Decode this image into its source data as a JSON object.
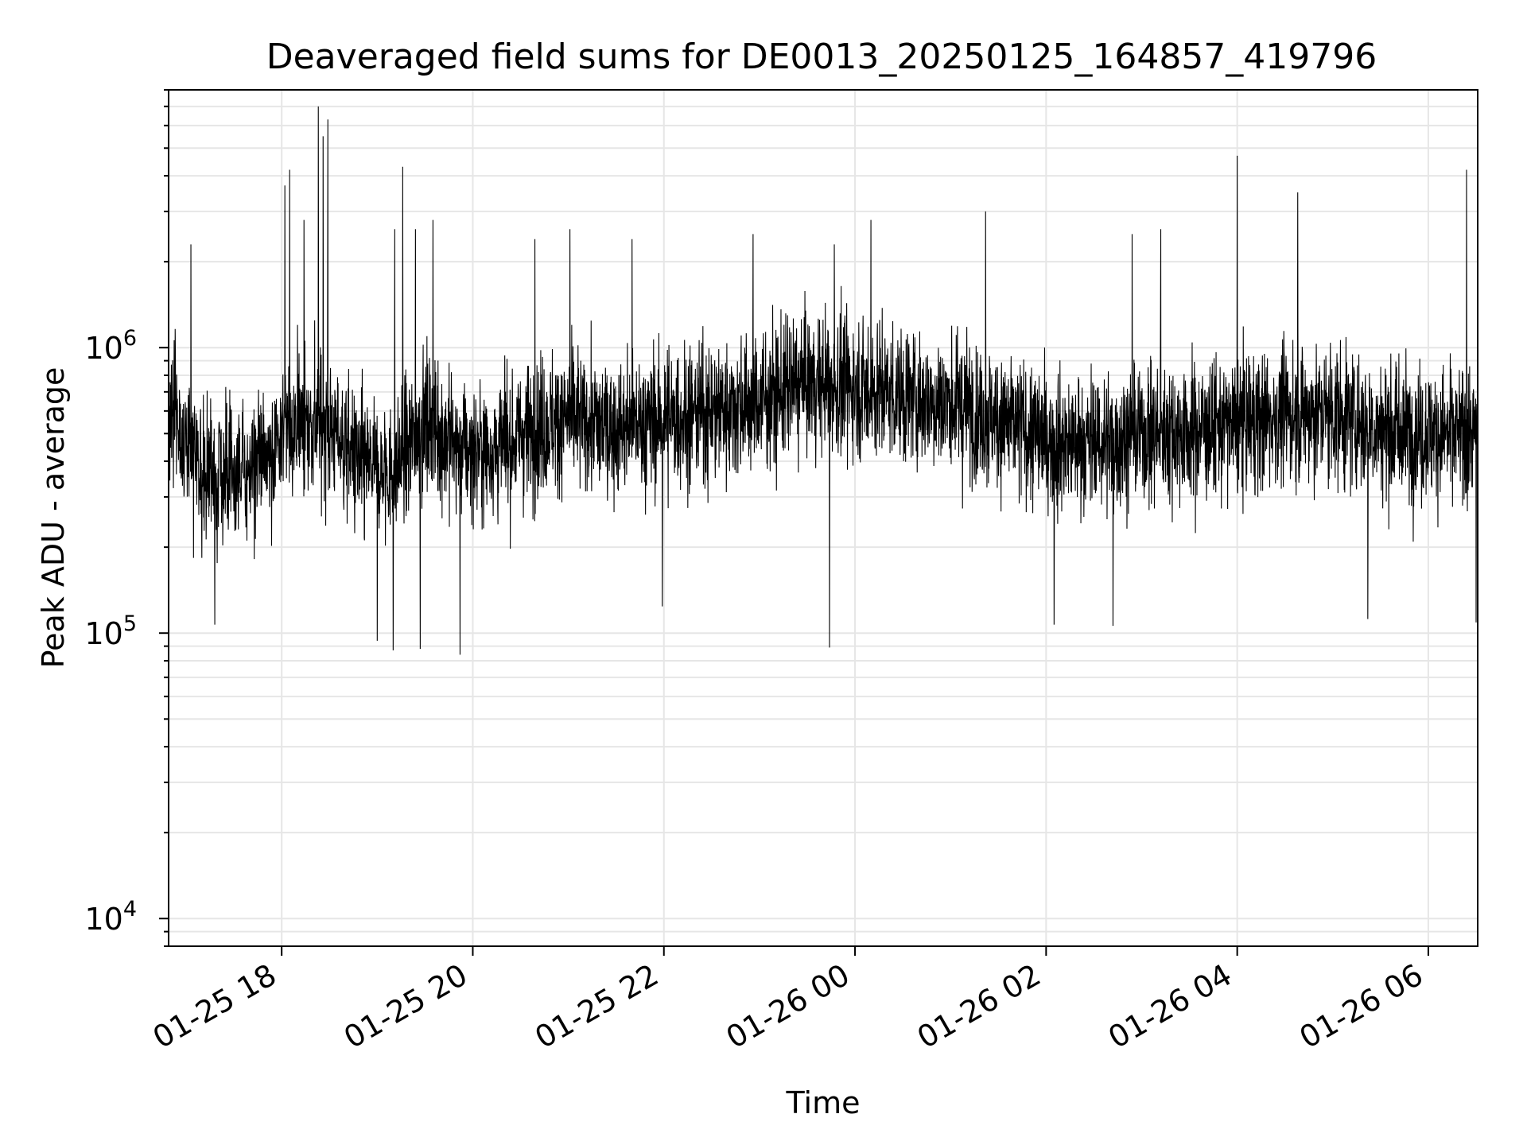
{
  "chart_data": {
    "type": "line",
    "title": "Deaveraged field sums for DE0013_20250125_164857_419796",
    "xlabel": "Time",
    "ylabel": "Peak ADU - average",
    "y_scale": "log",
    "ylim": [
      8000,
      8000000
    ],
    "xlim": [
      "2025-01-25 16:49",
      "2025-01-26 06:31"
    ],
    "grid": true,
    "legend": "none",
    "x_ticks": [
      {
        "date": "2025-01-25 18:00",
        "label": "01-25 18"
      },
      {
        "date": "2025-01-25 20:00",
        "label": "01-25 20"
      },
      {
        "date": "2025-01-25 22:00",
        "label": "01-25 22"
      },
      {
        "date": "2025-01-26 00:00",
        "label": "01-26 00"
      },
      {
        "date": "2025-01-26 02:00",
        "label": "01-26 02"
      },
      {
        "date": "2025-01-26 04:00",
        "label": "01-26 04"
      },
      {
        "date": "2025-01-26 06:00",
        "label": "01-26 06"
      }
    ],
    "y_ticks": [
      {
        "value": 10000,
        "base": "10",
        "exp": "4"
      },
      {
        "value": 100000,
        "base": "10",
        "exp": "5"
      },
      {
        "value": 1000000,
        "base": "10",
        "exp": "6"
      }
    ],
    "colors": {
      "line": "#000000",
      "grid": "#e6e6e6",
      "axes": "#000000"
    },
    "series": [
      {
        "baseline_points": [
          [
            "2025-01-25 16:49",
            600000
          ],
          [
            "2025-01-25 17:10",
            380000
          ],
          [
            "2025-01-25 17:30",
            340000
          ],
          [
            "2025-01-25 17:50",
            420000
          ],
          [
            "2025-01-25 18:10",
            560000
          ],
          [
            "2025-01-25 18:30",
            530000
          ],
          [
            "2025-01-25 18:50",
            380000
          ],
          [
            "2025-01-25 19:10",
            360000
          ],
          [
            "2025-01-25 19:30",
            560000
          ],
          [
            "2025-01-25 19:50",
            450000
          ],
          [
            "2025-01-25 20:10",
            430000
          ],
          [
            "2025-01-25 20:40",
            520000
          ],
          [
            "2025-01-25 21:00",
            560000
          ],
          [
            "2025-01-25 21:30",
            520000
          ],
          [
            "2025-01-25 22:00",
            560000
          ],
          [
            "2025-01-25 22:30",
            600000
          ],
          [
            "2025-01-25 23:00",
            650000
          ],
          [
            "2025-01-25 23:30",
            760000
          ],
          [
            "2025-01-26 00:00",
            730000
          ],
          [
            "2025-01-26 00:30",
            680000
          ],
          [
            "2025-01-26 01:00",
            640000
          ],
          [
            "2025-01-26 01:30",
            560000
          ],
          [
            "2025-01-26 02:00",
            470000
          ],
          [
            "2025-01-26 02:30",
            460000
          ],
          [
            "2025-01-26 03:00",
            500000
          ],
          [
            "2025-01-26 03:30",
            510000
          ],
          [
            "2025-01-26 04:00",
            540000
          ],
          [
            "2025-01-26 04:30",
            580000
          ],
          [
            "2025-01-26 05:00",
            590000
          ],
          [
            "2025-01-26 05:30",
            520000
          ],
          [
            "2025-01-26 06:00",
            500000
          ],
          [
            "2025-01-26 06:31",
            490000
          ]
        ],
        "spikes_up": [
          [
            "2025-01-25 17:03",
            2300000
          ],
          [
            "2025-01-25 18:02",
            3700000
          ],
          [
            "2025-01-25 18:05",
            4200000
          ],
          [
            "2025-01-25 18:14",
            2800000
          ],
          [
            "2025-01-25 18:23",
            7000000
          ],
          [
            "2025-01-25 18:26",
            5500000
          ],
          [
            "2025-01-25 18:29",
            6300000
          ],
          [
            "2025-01-25 19:11",
            2600000
          ],
          [
            "2025-01-25 19:16",
            4300000
          ],
          [
            "2025-01-25 19:24",
            2600000
          ],
          [
            "2025-01-25 19:35",
            2800000
          ],
          [
            "2025-01-25 20:39",
            2400000
          ],
          [
            "2025-01-25 21:01",
            2600000
          ],
          [
            "2025-01-25 21:40",
            2400000
          ],
          [
            "2025-01-25 22:56",
            2500000
          ],
          [
            "2025-01-25 23:47",
            2300000
          ],
          [
            "2025-01-26 00:10",
            2800000
          ],
          [
            "2025-01-26 01:22",
            3000000
          ],
          [
            "2025-01-26 02:54",
            2500000
          ],
          [
            "2025-01-26 03:12",
            2600000
          ],
          [
            "2025-01-26 04:00",
            4700000
          ],
          [
            "2025-01-26 04:38",
            3500000
          ],
          [
            "2025-01-26 06:24",
            4200000
          ],
          [
            "2025-01-26 06:30",
            2300000
          ]
        ],
        "spikes_down": [
          [
            "2025-01-25 17:18",
            107000
          ],
          [
            "2025-01-25 19:00",
            94000
          ],
          [
            "2025-01-25 19:10",
            87000
          ],
          [
            "2025-01-25 19:27",
            88000
          ],
          [
            "2025-01-25 19:52",
            84000
          ],
          [
            "2025-01-25 21:59",
            124000
          ],
          [
            "2025-01-25 23:44",
            89000
          ],
          [
            "2025-01-26 02:05",
            107000
          ],
          [
            "2025-01-26 02:42",
            106000
          ],
          [
            "2025-01-26 05:22",
            112000
          ],
          [
            "2025-01-26 06:30",
            109000
          ]
        ]
      }
    ]
  }
}
